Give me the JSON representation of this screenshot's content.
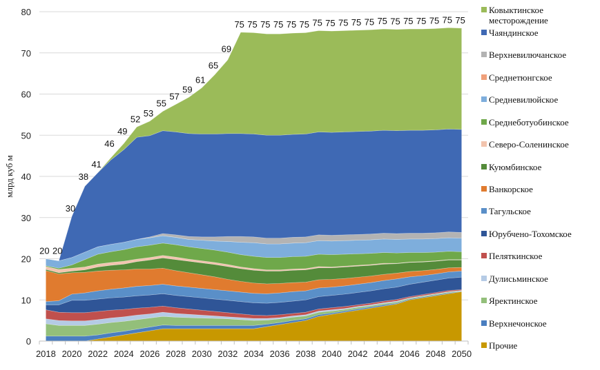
{
  "chart_data": {
    "type": "area",
    "stacked": true,
    "title": "",
    "xlabel": "",
    "ylabel": "млрд куб м",
    "ylim": [
      0,
      80
    ],
    "yticks": [
      0,
      10,
      20,
      30,
      40,
      50,
      60,
      70,
      80
    ],
    "grid": true,
    "legend_position": "right",
    "x": [
      2018,
      2019,
      2020,
      2021,
      2022,
      2023,
      2024,
      2025,
      2026,
      2027,
      2028,
      2029,
      2030,
      2031,
      2032,
      2033,
      2034,
      2035,
      2036,
      2037,
      2038,
      2039,
      2040,
      2041,
      2042,
      2043,
      2044,
      2045,
      2046,
      2047,
      2048,
      2049,
      2050
    ],
    "xtick_labels": [
      "2018",
      "2020",
      "2022",
      "2024",
      "2026",
      "2028",
      "2030",
      "2032",
      "2034",
      "2036",
      "2038",
      "2040",
      "2042",
      "2044",
      "2046",
      "2048",
      "2050"
    ],
    "totals_labels": [
      20,
      20,
      30,
      38,
      41,
      46,
      49,
      52,
      53,
      55,
      57,
      59,
      61,
      65,
      69,
      75,
      75,
      75,
      75,
      75,
      75,
      75,
      75,
      75,
      75,
      75,
      75,
      75,
      75,
      75,
      75,
      75,
      75
    ],
    "series": [
      {
        "name": "Прочие",
        "color": "#C89800",
        "values": [
          0,
          0,
          0,
          0,
          0.5,
          1,
          1.5,
          2,
          2.5,
          3,
          3,
          3,
          3,
          3,
          3,
          3,
          3,
          3.5,
          4,
          4.5,
          5,
          6,
          6.5,
          7,
          7.5,
          8,
          8.5,
          9,
          10,
          10.5,
          11,
          11.5,
          12
        ]
      },
      {
        "name": "Верхнечонское",
        "color": "#4A7EC0",
        "values": [
          1.2,
          1.2,
          1.2,
          1.2,
          1,
          1,
          0.9,
          0.9,
          0.9,
          0.9,
          0.8,
          0.8,
          0.8,
          0.8,
          0.8,
          0.8,
          0.8,
          0.6,
          0.5,
          0.5,
          0.4,
          0.4,
          0.3,
          0.3,
          0.3,
          0.3,
          0.3,
          0.2,
          0.2,
          0.2,
          0.2,
          0.2,
          0.1
        ]
      },
      {
        "name": "Яректинское",
        "color": "#93BF7A",
        "values": [
          3,
          2.6,
          2.6,
          2.6,
          2.6,
          2.5,
          2.4,
          2.3,
          2.2,
          2.1,
          2,
          1.9,
          1.8,
          1.7,
          1.6,
          1.4,
          1.2,
          1,
          0.9,
          0.8,
          0.7,
          0.6,
          0.5,
          0.4,
          0.4,
          0.3,
          0.3,
          0.3,
          0.2,
          0.2,
          0.2,
          0.2,
          0.1
        ]
      },
      {
        "name": "Дулисьминское",
        "color": "#B5CBE5",
        "values": [
          1.2,
          1.2,
          1.1,
          1.1,
          1.1,
          1.1,
          1.1,
          1.1,
          1,
          1,
          0.9,
          0.8,
          0.7,
          0.6,
          0.5,
          0.5,
          0.5,
          0.4,
          0.3,
          0.3,
          0.3,
          0.3,
          0.3,
          0.2,
          0.2,
          0.2,
          0.2,
          0.2,
          0.1,
          0.1,
          0.1,
          0.1,
          0.1
        ]
      },
      {
        "name": "Пеляткинское",
        "color": "#C0504D",
        "values": [
          2.2,
          2,
          2,
          2,
          2,
          1.9,
          1.8,
          1.7,
          1.6,
          1.5,
          1.4,
          1.3,
          1.2,
          1.1,
          1,
          0.9,
          0.8,
          0.7,
          0.7,
          0.6,
          0.6,
          0.5,
          0.5,
          0.5,
          0.4,
          0.4,
          0.4,
          0.4,
          0.3,
          0.3,
          0.3,
          0.3,
          0.2
        ]
      },
      {
        "name": "Юрубчено-Тохомское",
        "color": "#2F5597",
        "values": [
          1.2,
          1.8,
          3,
          3,
          3,
          3,
          3,
          3,
          3,
          3,
          3,
          3,
          3,
          3,
          3,
          3,
          3,
          3,
          3,
          3,
          3,
          3,
          3,
          3,
          3,
          3,
          3,
          3,
          3,
          3,
          3,
          3,
          3
        ]
      },
      {
        "name": "Тагульское",
        "color": "#5A8FC8",
        "values": [
          0.8,
          1,
          1.5,
          1.8,
          2,
          2.1,
          2.2,
          2.3,
          2.3,
          2.3,
          2.3,
          2.3,
          2.3,
          2.3,
          2.3,
          2.3,
          2.3,
          2.3,
          2.3,
          2.3,
          2.2,
          2.1,
          2,
          2,
          2,
          2,
          2,
          2,
          1.8,
          1.6,
          1.5,
          1.5,
          1.5
        ]
      },
      {
        "name": "Ванкорское",
        "color": "#E07B2F",
        "values": [
          7.5,
          6.5,
          5.2,
          5,
          4.8,
          4.6,
          4.4,
          4.2,
          4,
          3.9,
          3.7,
          3.5,
          3.3,
          3.1,
          2.8,
          2.6,
          2.5,
          2.4,
          2.3,
          2.2,
          2.1,
          2,
          1.9,
          1.8,
          1.7,
          1.6,
          1.5,
          1.4,
          1.3,
          1.2,
          1.1,
          1,
          0.9
        ]
      },
      {
        "name": "Куюмбинское",
        "color": "#548B3A",
        "values": [
          0.3,
          0.3,
          0.4,
          0.6,
          1,
          1.2,
          1.4,
          1.8,
          2.2,
          2.5,
          2.7,
          2.8,
          2.9,
          3,
          3.1,
          3.1,
          3.1,
          3.1,
          3,
          3,
          3,
          2.9,
          2.8,
          2.8,
          2.7,
          2.6,
          2.5,
          2.3,
          2.2,
          2.1,
          2,
          1.9,
          1.8
        ]
      },
      {
        "name": "Северо-Соленинское",
        "color": "#F2C4AE",
        "values": [
          0.7,
          0.8,
          0.7,
          0.7,
          0.7,
          0.7,
          0.7,
          0.6,
          0.6,
          0.6,
          0.6,
          0.5,
          0.5,
          0.5,
          0.5,
          0.4,
          0.4,
          0.3,
          0.3,
          0.3,
          0.3,
          0.3,
          0.2,
          0.2,
          0.2,
          0.2,
          0.2,
          0.1,
          0.1,
          0.1,
          0.1,
          0.1,
          0.1
        ]
      },
      {
        "name": "Среднеботуобинское",
        "color": "#6FA84A",
        "values": [
          0.2,
          0.3,
          0.8,
          1.8,
          2.4,
          2.6,
          2.8,
          3,
          3,
          3,
          3,
          3,
          3,
          3,
          3,
          3,
          3,
          3,
          3,
          3,
          3,
          3,
          3,
          2.9,
          2.8,
          2.7,
          2.6,
          2.5,
          2.3,
          2.2,
          2.1,
          2,
          1.9
        ]
      },
      {
        "name": "Средневилюйское",
        "color": "#7EAEDC",
        "values": [
          1.7,
          1.8,
          1.8,
          1.8,
          1.8,
          1.8,
          1.8,
          1.8,
          1.8,
          1.8,
          1.8,
          1.8,
          2,
          2.2,
          2.6,
          3,
          3.3,
          3.3,
          3.3,
          3.3,
          3.3,
          3.3,
          3.3,
          3.3,
          3.3,
          3.3,
          3.3,
          3.3,
          3.3,
          3.3,
          3.3,
          3.3,
          3.3
        ]
      },
      {
        "name": "Среднетюнгское",
        "color": "#F0A07A",
        "values": [
          0,
          0,
          0,
          0,
          0,
          0,
          0,
          0,
          0,
          0,
          0,
          0,
          0,
          0,
          0,
          0,
          0,
          0,
          0,
          0,
          0,
          0,
          0,
          0,
          0,
          0,
          0,
          0,
          0,
          0,
          0,
          0,
          0
        ]
      },
      {
        "name": "Верхневилючанское",
        "color": "#B3B3B3",
        "values": [
          0,
          0,
          0,
          0,
          0,
          0,
          0,
          0,
          0.2,
          0.5,
          0.6,
          0.7,
          0.8,
          1,
          1.2,
          1.4,
          1.4,
          1.4,
          1.4,
          1.4,
          1.4,
          1.4,
          1.4,
          1.4,
          1.4,
          1.4,
          1.4,
          1.4,
          1.4,
          1.4,
          1.4,
          1.4,
          1.4
        ]
      },
      {
        "name": "Чаяндинское",
        "color": "#3F69B4",
        "values": [
          0,
          0,
          10,
          16,
          18,
          20.5,
          22.5,
          24.8,
          24.6,
          25,
          25,
          25,
          25,
          25,
          25,
          25,
          25,
          25,
          25,
          25,
          25,
          25,
          25,
          25,
          25,
          25,
          25,
          25,
          25,
          25,
          25,
          25,
          25
        ]
      },
      {
        "name": "Ковыктинское месторождение",
        "color": "#9BBB59",
        "values": [
          0,
          0,
          0,
          0,
          0,
          0.5,
          1.5,
          2.5,
          3.5,
          4.7,
          6.7,
          8.8,
          11.2,
          14.4,
          17.9,
          24.6,
          24.6,
          24.6,
          24.6,
          24.6,
          24.6,
          24.6,
          24.6,
          24.6,
          24.6,
          24.6,
          24.6,
          24.6,
          24.6,
          24.6,
          24.6,
          24.6,
          24.6
        ]
      }
    ]
  },
  "legend": {
    "items": [
      {
        "label": "Ковыктинское месторождение",
        "color": "#9BBB59"
      },
      {
        "label": "Чаяндинское",
        "color": "#3F69B4"
      },
      {
        "label": "Верхневилючанское",
        "color": "#B3B3B3"
      },
      {
        "label": "Среднетюнгское",
        "color": "#F0A07A"
      },
      {
        "label": "Средневилюйское",
        "color": "#7EAEDC"
      },
      {
        "label": "Среднеботуобинское",
        "color": "#6FA84A"
      },
      {
        "label": "Северо-Соленинское",
        "color": "#F2C4AE"
      },
      {
        "label": "Куюмбинское",
        "color": "#548B3A"
      },
      {
        "label": "Ванкорское",
        "color": "#E07B2F"
      },
      {
        "label": "Тагульское",
        "color": "#5A8FC8"
      },
      {
        "label": "Юрубчено-Тохомское",
        "color": "#2F5597"
      },
      {
        "label": "Пеляткинское",
        "color": "#C0504D"
      },
      {
        "label": "Дулисьминское",
        "color": "#B5CBE5"
      },
      {
        "label": "Яректинское",
        "color": "#93BF7A"
      },
      {
        "label": "Верхнечонское",
        "color": "#4A7EC0"
      },
      {
        "label": "Прочие",
        "color": "#C89800"
      }
    ]
  }
}
